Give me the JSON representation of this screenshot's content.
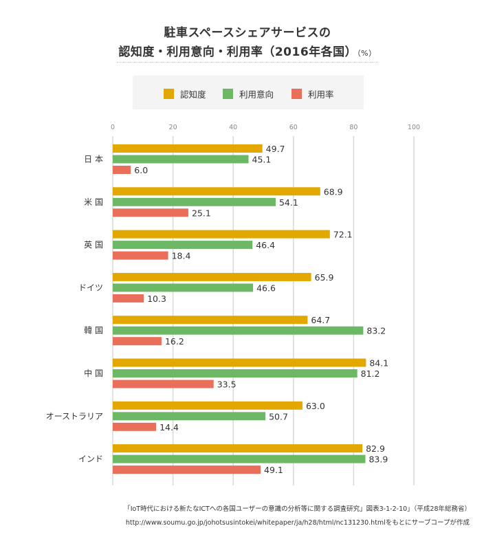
{
  "title_line1": "駐車スペースシェアサービスの",
  "title_line2": "認知度・利用意向・利用率（2016年各国）",
  "title_unit": "（%）",
  "source_line1": "「IoT時代における新たなICTへの各国ユーザーの意識の分析等に関する調査研究」図表3-1-2-10」（平成28年総務省）",
  "source_line2": "http://www.soumu.go.jp/johotsusintokei/whitepaper/ja/h28/html/nc131230.htmlをもとにサーブコープが作成",
  "chart_data": {
    "type": "bar",
    "orientation": "horizontal",
    "title": "駐車スペースシェアサービスの認知度・利用意向・利用率（2016年各国）（%）",
    "xlabel": "",
    "ylabel": "",
    "xlim": [
      0,
      100
    ],
    "xticks": [
      0,
      20,
      40,
      60,
      80,
      100
    ],
    "grid": true,
    "legend_position": "top",
    "categories": [
      "日 本",
      "米 国",
      "英 国",
      "ドイツ",
      "韓 国",
      "中 国",
      "オーストラリア",
      "インド"
    ],
    "series": [
      {
        "name": "認知度",
        "color": "#e2a800",
        "values": [
          49.7,
          68.9,
          72.1,
          65.9,
          64.7,
          84.1,
          63.0,
          82.9
        ]
      },
      {
        "name": "利用意向",
        "color": "#6cb865",
        "values": [
          45.1,
          54.1,
          46.4,
          46.6,
          83.2,
          81.2,
          50.7,
          83.9
        ]
      },
      {
        "name": "利用率",
        "color": "#ea6f5a",
        "values": [
          6.0,
          25.1,
          18.4,
          10.3,
          16.2,
          33.5,
          14.4,
          49.1
        ]
      }
    ]
  }
}
